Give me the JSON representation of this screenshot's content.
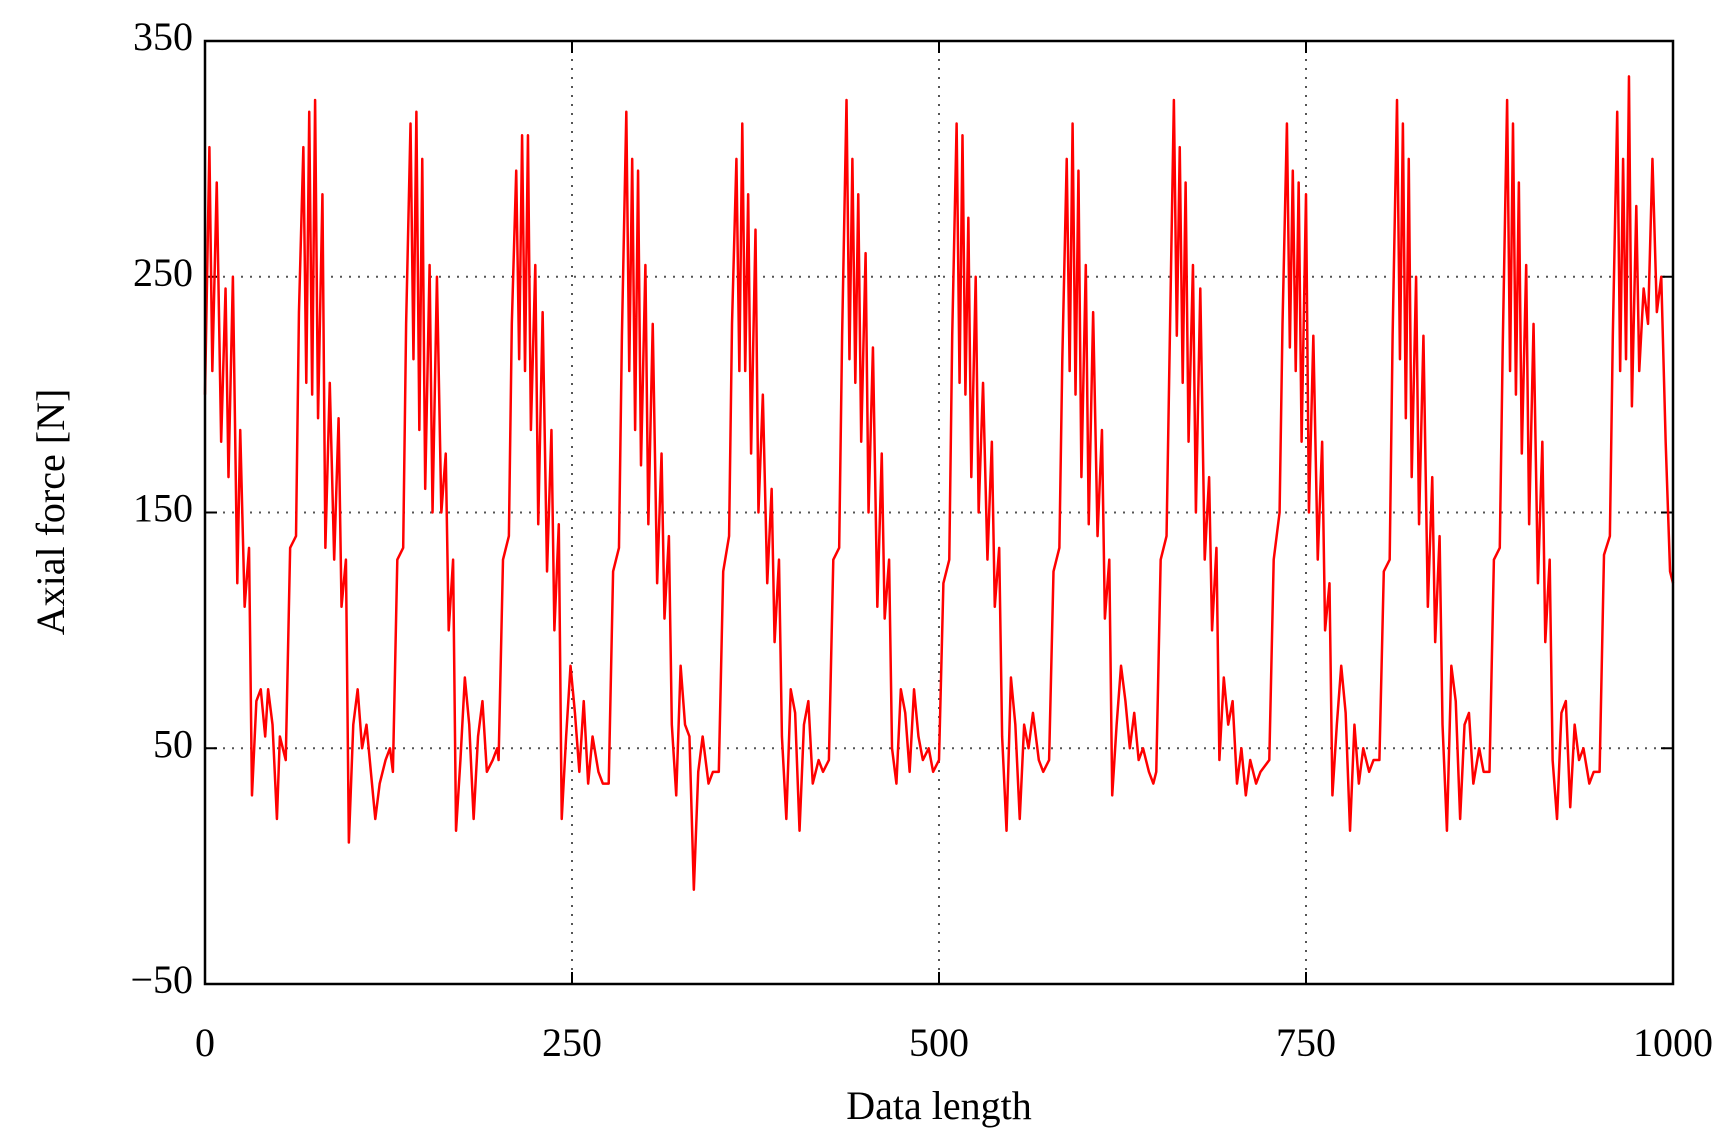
{
  "chart_data": {
    "type": "line",
    "x_label": "Data length",
    "y_label": "Axial force [N]",
    "xlim": [
      0,
      1000
    ],
    "xticks": [
      0,
      250,
      500,
      750,
      1000
    ],
    "ylim": [
      -50,
      350
    ],
    "yticks": [
      {
        "value": -50,
        "label": "−50"
      },
      50,
      150,
      250,
      350
    ],
    "grid": true,
    "color": "#ff0000",
    "x": [
      0,
      3,
      5,
      8,
      11,
      14,
      16,
      19,
      22,
      24,
      27,
      30,
      32,
      35,
      38,
      41,
      43,
      46,
      49,
      51,
      55,
      58,
      62,
      64,
      67,
      69,
      71,
      73,
      75,
      77,
      80,
      82,
      85,
      88,
      91,
      93,
      96,
      98,
      101,
      104,
      107,
      110,
      113,
      116,
      119,
      123,
      126,
      128,
      131,
      135,
      137,
      140,
      142,
      144,
      146,
      148,
      150,
      153,
      155,
      158,
      161,
      164,
      166,
      169,
      171,
      174,
      177,
      180,
      183,
      186,
      189,
      192,
      196,
      199,
      200,
      203,
      207,
      209,
      212,
      214,
      216,
      218,
      220,
      222,
      225,
      227,
      230,
      233,
      236,
      238,
      241,
      243,
      246,
      249,
      252,
      255,
      258,
      261,
      264,
      268,
      271,
      275,
      278,
      282,
      284,
      287,
      289,
      291,
      293,
      295,
      297,
      300,
      302,
      305,
      308,
      311,
      313,
      316,
      318,
      321,
      324,
      327,
      330,
      333,
      336,
      339,
      343,
      346,
      350,
      353,
      357,
      359,
      362,
      364,
      366,
      368,
      370,
      372,
      375,
      377,
      380,
      383,
      386,
      388,
      391,
      393,
      396,
      399,
      402,
      405,
      408,
      411,
      414,
      418,
      421,
      425,
      428,
      432,
      434,
      437,
      439,
      441,
      443,
      445,
      447,
      450,
      452,
      455,
      458,
      461,
      463,
      466,
      468,
      471,
      474,
      477,
      480,
      483,
      486,
      489,
      493,
      496,
      500,
      503,
      507,
      509,
      512,
      514,
      516,
      518,
      520,
      522,
      525,
      527,
      530,
      533,
      536,
      538,
      541,
      543,
      546,
      549,
      552,
      555,
      558,
      561,
      564,
      568,
      571,
      575,
      578,
      582,
      584,
      587,
      589,
      591,
      593,
      595,
      597,
      600,
      602,
      605,
      608,
      611,
      613,
      616,
      618,
      621,
      624,
      627,
      630,
      633,
      636,
      639,
      643,
      646,
      648,
      651,
      655,
      657,
      660,
      662,
      664,
      666,
      668,
      670,
      673,
      675,
      678,
      681,
      684,
      686,
      689,
      691,
      694,
      697,
      700,
      703,
      706,
      709,
      712,
      716,
      719,
      725,
      728,
      732,
      734,
      737,
      739,
      741,
      743,
      745,
      747,
      750,
      752,
      755,
      758,
      761,
      763,
      766,
      768,
      771,
      774,
      777,
      780,
      783,
      786,
      789,
      793,
      796,
      800,
      803,
      807,
      809,
      812,
      814,
      816,
      818,
      820,
      822,
      825,
      827,
      830,
      833,
      836,
      838,
      841,
      843,
      846,
      849,
      852,
      855,
      858,
      861,
      864,
      868,
      871,
      875,
      878,
      882,
      884,
      887,
      889,
      891,
      893,
      895,
      897,
      900,
      902,
      905,
      908,
      911,
      913,
      916,
      918,
      921,
      924,
      927,
      930,
      933,
      936,
      939,
      943,
      946,
      950,
      953,
      957,
      959,
      962,
      964,
      966,
      968,
      970,
      972,
      975,
      977,
      980,
      983,
      986,
      989,
      992,
      995,
      998,
      1000
    ],
    "values": [
      200,
      305,
      210,
      290,
      180,
      245,
      165,
      250,
      120,
      185,
      110,
      135,
      30,
      70,
      75,
      55,
      75,
      60,
      20,
      55,
      45,
      135,
      140,
      235,
      305,
      205,
      320,
      200,
      325,
      190,
      285,
      135,
      205,
      130,
      190,
      110,
      130,
      10,
      60,
      75,
      50,
      60,
      40,
      20,
      35,
      45,
      50,
      40,
      130,
      135,
      230,
      315,
      215,
      320,
      185,
      300,
      160,
      255,
      150,
      250,
      150,
      175,
      100,
      130,
      15,
      45,
      80,
      60,
      20,
      55,
      70,
      40,
      45,
      50,
      45,
      130,
      140,
      230,
      295,
      215,
      310,
      210,
      310,
      185,
      255,
      145,
      235,
      125,
      185,
      100,
      145,
      20,
      55,
      85,
      65,
      40,
      70,
      35,
      55,
      40,
      35,
      35,
      125,
      135,
      225,
      320,
      210,
      300,
      185,
      295,
      170,
      255,
      145,
      230,
      120,
      175,
      105,
      140,
      60,
      30,
      85,
      60,
      55,
      -10,
      40,
      55,
      35,
      40,
      40,
      125,
      140,
      230,
      300,
      210,
      315,
      210,
      285,
      175,
      270,
      150,
      200,
      120,
      160,
      95,
      130,
      55,
      20,
      75,
      65,
      15,
      60,
      70,
      35,
      45,
      40,
      45,
      130,
      135,
      225,
      325,
      215,
      300,
      205,
      285,
      180,
      260,
      150,
      220,
      110,
      175,
      105,
      130,
      50,
      35,
      75,
      65,
      40,
      75,
      55,
      45,
      50,
      40,
      45,
      120,
      130,
      225,
      315,
      205,
      310,
      200,
      275,
      165,
      250,
      150,
      205,
      130,
      180,
      110,
      135,
      55,
      15,
      80,
      60,
      20,
      60,
      50,
      65,
      45,
      40,
      45,
      125,
      135,
      215,
      300,
      210,
      315,
      200,
      295,
      165,
      255,
      145,
      235,
      140,
      185,
      105,
      130,
      30,
      60,
      85,
      70,
      50,
      65,
      45,
      50,
      40,
      35,
      40,
      130,
      140,
      215,
      325,
      225,
      305,
      205,
      290,
      180,
      255,
      150,
      245,
      130,
      165,
      100,
      135,
      45,
      80,
      60,
      70,
      35,
      50,
      30,
      45,
      35,
      40,
      45,
      130,
      150,
      230,
      315,
      220,
      295,
      210,
      290,
      180,
      285,
      150,
      225,
      130,
      180,
      100,
      120,
      30,
      60,
      85,
      65,
      15,
      60,
      35,
      50,
      40,
      45,
      45,
      125,
      130,
      225,
      325,
      215,
      315,
      190,
      300,
      165,
      250,
      145,
      225,
      110,
      165,
      95,
      140,
      60,
      15,
      85,
      70,
      20,
      60,
      65,
      35,
      50,
      40,
      40,
      130,
      135,
      220,
      325,
      210,
      315,
      200,
      290,
      175,
      255,
      145,
      230,
      120,
      180,
      95,
      130,
      45,
      20,
      65,
      70,
      25,
      60,
      45,
      50,
      35,
      40,
      40,
      132,
      140,
      225,
      320,
      210,
      300,
      215,
      335,
      195,
      280,
      210,
      245,
      230,
      300,
      235,
      250,
      180,
      125,
      120
    ]
  }
}
